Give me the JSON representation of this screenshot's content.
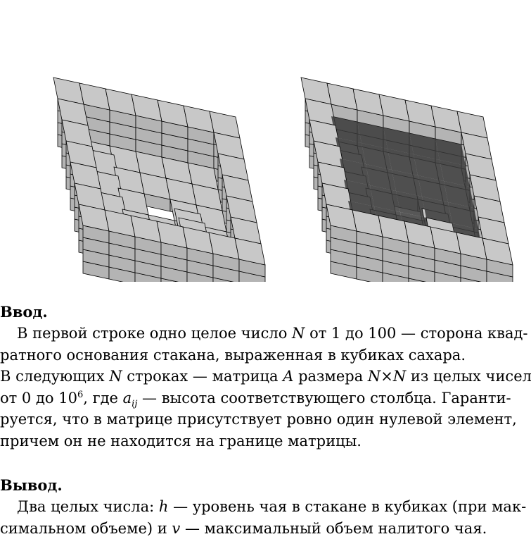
{
  "figures": {
    "left": {
      "name": "empty-glass",
      "tea_filled": false
    },
    "right": {
      "name": "filled-glass",
      "tea_filled": true
    },
    "colors": {
      "cube": "#c8c8c8",
      "cube_side": "#9a9a9a",
      "cube_front": "#b4b4b4",
      "tea": "#3a3a3a",
      "edge": "#000000"
    }
  },
  "input": {
    "heading": "Ввод.",
    "lines": [
      {
        "t1": "В первой строке одно целое число ",
        "m1": "N",
        "t2": " от 1 до 100 — сторона квад-"
      },
      {
        "t1": "ратного основания стакана, выраженная в кубиках сахара."
      },
      {
        "t1": "В следующих ",
        "m1": "N",
        "t2": " строках — матрица ",
        "m2": "A",
        "t3": " размера ",
        "m3": "N",
        "t4": "×",
        "m4": "N",
        "t5": " из целых чисел"
      },
      {
        "t1": "от 0 до 10",
        "sup": "6",
        "t2": ", где ",
        "m1": "a",
        "sub": "ij",
        "t3": " — высота соответствующего столбца. Гаранти-"
      },
      {
        "t1": "руется, что в матрице присутствует ровно один нулевой элемент,"
      },
      {
        "t1": "причем он не находится на границе матрицы."
      }
    ]
  },
  "output": {
    "heading": "Вывод.",
    "lines": [
      {
        "t1": "Два целых числа: ",
        "m1": "h",
        "t2": " — уровень чая в стакане в кубиках (при мак-"
      },
      {
        "t1": "симальном объеме) и ",
        "m1": "v",
        "t2": " — максимальный объем налитого чая."
      }
    ]
  }
}
